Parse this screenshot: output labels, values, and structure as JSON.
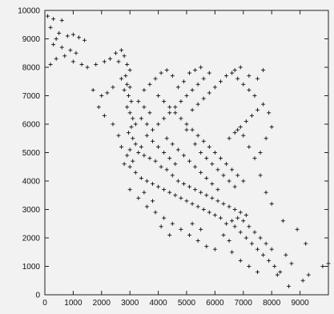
{
  "chart_data": {
    "type": "scatter",
    "marker": "+",
    "marker_color": "#111111",
    "background": "#f2f2f2",
    "grid": false,
    "xlim": [
      0,
      10000
    ],
    "ylim": [
      0,
      10000
    ],
    "x_ticks": [
      0,
      1000,
      2000,
      3000,
      4000,
      5000,
      6000,
      7000,
      8000,
      9000
    ],
    "x_tick_labels": [
      "0",
      "1000",
      "2000",
      "3000",
      "4000",
      "5000",
      "6000",
      "7000",
      "8000",
      "9000"
    ],
    "y_ticks": [
      0,
      1000,
      2000,
      3000,
      4000,
      5000,
      6000,
      7000,
      8000,
      9000,
      10000
    ],
    "y_tick_labels": [
      "0",
      "1000",
      "2000",
      "3000",
      "4000",
      "5000",
      "6000",
      "7000",
      "8000",
      "9000",
      "10000"
    ],
    "series": [
      {
        "points": [
          [
            100,
            9800
          ],
          [
            300,
            9700
          ],
          [
            600,
            9650
          ],
          [
            200,
            9400
          ],
          [
            500,
            9200
          ],
          [
            800,
            9100
          ],
          [
            400,
            9000
          ],
          [
            1000,
            9150
          ],
          [
            1200,
            9050
          ],
          [
            1400,
            8950
          ],
          [
            300,
            8800
          ],
          [
            600,
            8700
          ],
          [
            900,
            8600
          ],
          [
            1100,
            8500
          ],
          [
            700,
            8400
          ],
          [
            400,
            8300
          ],
          [
            200,
            8100
          ],
          [
            1000,
            8200
          ],
          [
            1300,
            8100
          ],
          [
            1500,
            8000
          ],
          [
            1800,
            8100
          ],
          [
            2100,
            8200
          ],
          [
            2300,
            8300
          ],
          [
            2500,
            8500
          ],
          [
            2700,
            8600
          ],
          [
            2800,
            8400
          ],
          [
            2600,
            8200
          ],
          [
            2900,
            8100
          ],
          [
            3000,
            7900
          ],
          [
            2850,
            7700
          ],
          [
            2700,
            7600
          ],
          [
            2900,
            7400
          ],
          [
            3000,
            7300
          ],
          [
            2800,
            7200
          ],
          [
            2950,
            7000
          ],
          [
            3050,
            6800
          ],
          [
            2900,
            6600
          ],
          [
            3000,
            6400
          ],
          [
            3100,
            6200
          ],
          [
            3200,
            6000
          ],
          [
            3050,
            5900
          ],
          [
            2950,
            5700
          ],
          [
            3100,
            5500
          ],
          [
            3200,
            5300
          ],
          [
            3400,
            5200
          ],
          [
            3300,
            5000
          ],
          [
            3500,
            4900
          ],
          [
            3700,
            4800
          ],
          [
            3900,
            4700
          ],
          [
            4100,
            4500
          ],
          [
            4300,
            4400
          ],
          [
            4500,
            4200
          ],
          [
            4700,
            4000
          ],
          [
            4900,
            3900
          ],
          [
            5100,
            3800
          ],
          [
            5300,
            3700
          ],
          [
            5500,
            3600
          ],
          [
            5700,
            3500
          ],
          [
            5900,
            3400
          ],
          [
            6100,
            3300
          ],
          [
            6300,
            3200
          ],
          [
            6500,
            3100
          ],
          [
            6700,
            3000
          ],
          [
            6900,
            2900
          ],
          [
            7100,
            2800
          ],
          [
            6800,
            2700
          ],
          [
            6600,
            2600
          ],
          [
            6400,
            2500
          ],
          [
            6200,
            2700
          ],
          [
            6000,
            2800
          ],
          [
            5800,
            2900
          ],
          [
            5600,
            3000
          ],
          [
            5400,
            3100
          ],
          [
            5200,
            3200
          ],
          [
            5000,
            3300
          ],
          [
            4800,
            3400
          ],
          [
            4600,
            3500
          ],
          [
            4400,
            3600
          ],
          [
            4200,
            3700
          ],
          [
            4000,
            3800
          ],
          [
            3800,
            3900
          ],
          [
            3600,
            4000
          ],
          [
            3400,
            4100
          ],
          [
            3200,
            4300
          ],
          [
            3000,
            4500
          ],
          [
            3100,
            4700
          ],
          [
            2900,
            4900
          ],
          [
            3000,
            5100
          ],
          [
            3600,
            5600
          ],
          [
            3800,
            5800
          ],
          [
            4000,
            6000
          ],
          [
            4200,
            6200
          ],
          [
            4400,
            6400
          ],
          [
            4600,
            6600
          ],
          [
            4800,
            6800
          ],
          [
            5000,
            7000
          ],
          [
            5200,
            7200
          ],
          [
            5400,
            7400
          ],
          [
            5600,
            7600
          ],
          [
            5800,
            7800
          ],
          [
            3500,
            7200
          ],
          [
            3700,
            7400
          ],
          [
            3900,
            7600
          ],
          [
            4100,
            7800
          ],
          [
            4300,
            7900
          ],
          [
            4500,
            7700
          ],
          [
            4000,
            7000
          ],
          [
            4200,
            6800
          ],
          [
            4400,
            6600
          ],
          [
            4600,
            6400
          ],
          [
            4800,
            6200
          ],
          [
            5000,
            6000
          ],
          [
            5200,
            5800
          ],
          [
            5400,
            5600
          ],
          [
            5600,
            5400
          ],
          [
            5800,
            5200
          ],
          [
            6000,
            5000
          ],
          [
            6200,
            4800
          ],
          [
            6400,
            4600
          ],
          [
            6600,
            4400
          ],
          [
            6800,
            4200
          ],
          [
            7000,
            4000
          ],
          [
            6500,
            5500
          ],
          [
            6700,
            5700
          ],
          [
            6900,
            5900
          ],
          [
            7100,
            6100
          ],
          [
            7300,
            6300
          ],
          [
            7500,
            6500
          ],
          [
            7700,
            6700
          ],
          [
            7400,
            7000
          ],
          [
            7200,
            7200
          ],
          [
            7000,
            7400
          ],
          [
            6800,
            7600
          ],
          [
            6600,
            7800
          ],
          [
            6400,
            7700
          ],
          [
            6200,
            7500
          ],
          [
            6000,
            7300
          ],
          [
            5800,
            7100
          ],
          [
            5600,
            6900
          ],
          [
            5400,
            6700
          ],
          [
            5200,
            6500
          ],
          [
            5000,
            5800
          ],
          [
            5300,
            5300
          ],
          [
            5500,
            5000
          ],
          [
            5700,
            4800
          ],
          [
            5900,
            4600
          ],
          [
            6100,
            4400
          ],
          [
            6300,
            4200
          ],
          [
            6500,
            4000
          ],
          [
            6700,
            3800
          ],
          [
            3300,
            6800
          ],
          [
            3500,
            6600
          ],
          [
            3700,
            6400
          ],
          [
            3400,
            6200
          ],
          [
            3600,
            6000
          ],
          [
            3800,
            5400
          ],
          [
            4000,
            5200
          ],
          [
            4200,
            5000
          ],
          [
            4400,
            4800
          ],
          [
            4600,
            4600
          ],
          [
            7000,
            2600
          ],
          [
            7200,
            2400
          ],
          [
            7400,
            2200
          ],
          [
            7600,
            2000
          ],
          [
            7800,
            1800
          ],
          [
            8000,
            1600
          ],
          [
            7700,
            1400
          ],
          [
            7900,
            1200
          ],
          [
            8100,
            1000
          ],
          [
            8300,
            800
          ],
          [
            7500,
            1600
          ],
          [
            7300,
            1800
          ],
          [
            7100,
            2000
          ],
          [
            6900,
            2200
          ],
          [
            6700,
            2400
          ],
          [
            8200,
            700
          ],
          [
            8500,
            1400
          ],
          [
            8700,
            1100
          ],
          [
            9100,
            500
          ],
          [
            9300,
            700
          ],
          [
            8900,
            2300
          ],
          [
            9200,
            1800
          ],
          [
            10000,
            1100
          ],
          [
            9800,
            1000
          ],
          [
            8600,
            300
          ],
          [
            8400,
            2600
          ],
          [
            8000,
            3200
          ],
          [
            7800,
            3600
          ],
          [
            7600,
            4200
          ],
          [
            7400,
            4800
          ],
          [
            7200,
            5200
          ],
          [
            7600,
            5000
          ],
          [
            7800,
            5500
          ],
          [
            8000,
            5900
          ],
          [
            7900,
            6400
          ],
          [
            7000,
            5600
          ],
          [
            6800,
            5800
          ],
          [
            7200,
            7700
          ],
          [
            7500,
            7600
          ],
          [
            7700,
            7900
          ],
          [
            6700,
            7900
          ],
          [
            6900,
            8000
          ],
          [
            5100,
            7800
          ],
          [
            5300,
            7900
          ],
          [
            5500,
            8000
          ],
          [
            4700,
            7300
          ],
          [
            4900,
            7500
          ],
          [
            2400,
            7300
          ],
          [
            2200,
            7100
          ],
          [
            2000,
            7000
          ],
          [
            1700,
            7200
          ],
          [
            1900,
            6600
          ],
          [
            2100,
            6300
          ],
          [
            2400,
            6000
          ],
          [
            2600,
            5600
          ],
          [
            2700,
            5200
          ],
          [
            2800,
            4600
          ],
          [
            3000,
            3700
          ],
          [
            3300,
            3400
          ],
          [
            3600,
            3100
          ],
          [
            3900,
            2900
          ],
          [
            4200,
            2700
          ],
          [
            4500,
            2500
          ],
          [
            4800,
            2300
          ],
          [
            5100,
            2100
          ],
          [
            5400,
            1900
          ],
          [
            5700,
            1700
          ],
          [
            6000,
            1600
          ],
          [
            4400,
            2100
          ],
          [
            4100,
            2400
          ],
          [
            3800,
            3300
          ],
          [
            3500,
            3600
          ],
          [
            5200,
            2500
          ],
          [
            5500,
            2300
          ],
          [
            6300,
            2100
          ],
          [
            6500,
            1900
          ],
          [
            6600,
            1500
          ],
          [
            6900,
            1200
          ],
          [
            7200,
            1000
          ],
          [
            7500,
            800
          ],
          [
            6100,
            3700
          ],
          [
            5900,
            3900
          ],
          [
            5700,
            4100
          ],
          [
            5500,
            4300
          ],
          [
            5300,
            4500
          ],
          [
            5100,
            4700
          ],
          [
            4900,
            4900
          ],
          [
            4700,
            5100
          ],
          [
            4500,
            5300
          ],
          [
            4300,
            5500
          ]
        ]
      }
    ]
  }
}
